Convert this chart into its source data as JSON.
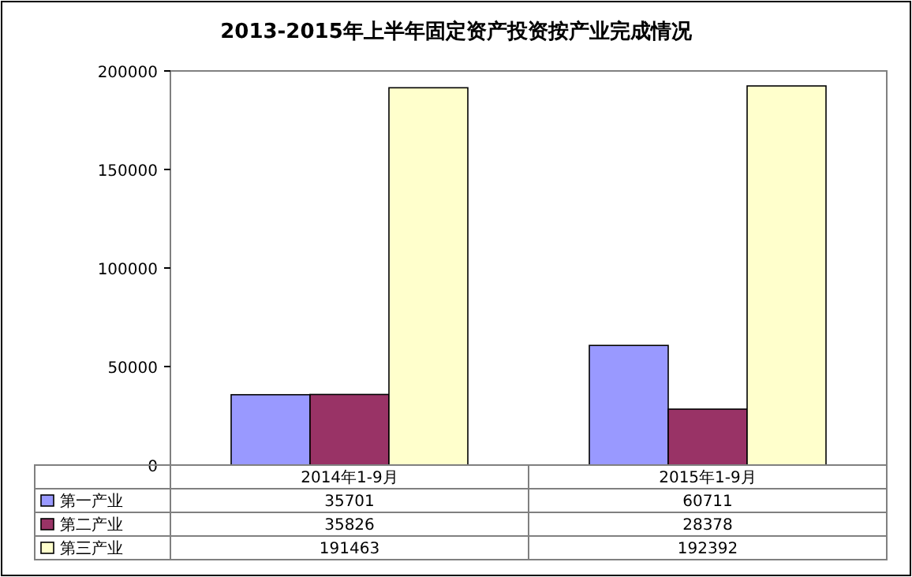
{
  "chart_data": {
    "type": "bar",
    "title": "2013-2015年上半年固定资产投资按产业完成情况",
    "categories": [
      "2014年1-9月",
      "2015年1-9月"
    ],
    "series": [
      {
        "name": "第一产业",
        "color": "#9999ff",
        "values": [
          35701,
          60711
        ]
      },
      {
        "name": "第二产业",
        "color": "#993366",
        "values": [
          35826,
          28378
        ]
      },
      {
        "name": "第三产业",
        "color": "#ffffcc",
        "values": [
          191463,
          192392
        ]
      }
    ],
    "ylim": [
      0,
      200000
    ],
    "yticks": [
      0,
      50000,
      100000,
      150000,
      200000
    ],
    "data_labels": true,
    "legend": "bottom"
  }
}
